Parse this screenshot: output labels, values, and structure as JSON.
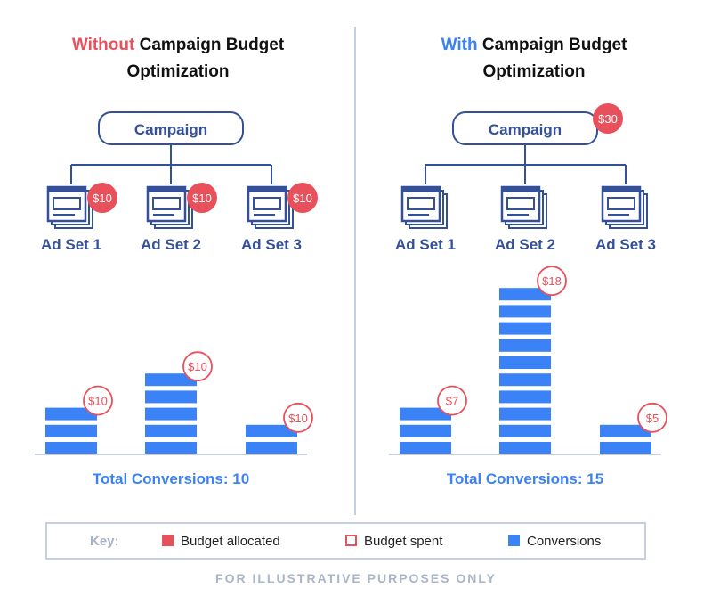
{
  "colors": {
    "budget": "#e8505b",
    "conversions": "#3b82f6",
    "diagram": "#34509a",
    "muted": "#c6cfdf"
  },
  "left": {
    "title_word": "Without",
    "title_rest": "Campaign Budget",
    "title_line2": "Optimization",
    "campaign": {
      "label": "Campaign",
      "budget_badge": null
    },
    "ad_sets": [
      {
        "label": "Ad Set 1",
        "budget_badge": "$10"
      },
      {
        "label": "Ad Set 2",
        "budget_badge": "$10"
      },
      {
        "label": "Ad Set 3",
        "budget_badge": "$10"
      }
    ],
    "bars": [
      {
        "conversions": 3,
        "spent": "$10"
      },
      {
        "conversions": 5,
        "spent": "$10"
      },
      {
        "conversions": 2,
        "spent": "$10"
      }
    ],
    "total": "Total Conversions: 10"
  },
  "right": {
    "title_word": "With",
    "title_rest": "Campaign Budget",
    "title_line2": "Optimization",
    "campaign": {
      "label": "Campaign",
      "budget_badge": "$30"
    },
    "ad_sets": [
      {
        "label": "Ad Set 1",
        "budget_badge": null
      },
      {
        "label": "Ad Set 2",
        "budget_badge": null
      },
      {
        "label": "Ad Set 3",
        "budget_badge": null
      }
    ],
    "bars": [
      {
        "conversions": 3,
        "spent": "$7"
      },
      {
        "conversions": 10,
        "spent": "$18"
      },
      {
        "conversions": 2,
        "spent": "$5"
      }
    ],
    "total": "Total Conversions: 15"
  },
  "key": {
    "heading": "Key:",
    "items": [
      {
        "label": "Budget allocated",
        "style": "filled"
      },
      {
        "label": "Budget spent",
        "style": "outline"
      },
      {
        "label": "Conversions",
        "style": "conversion"
      }
    ]
  },
  "footer": "FOR ILLUSTRATIVE PURPOSES ONLY"
}
